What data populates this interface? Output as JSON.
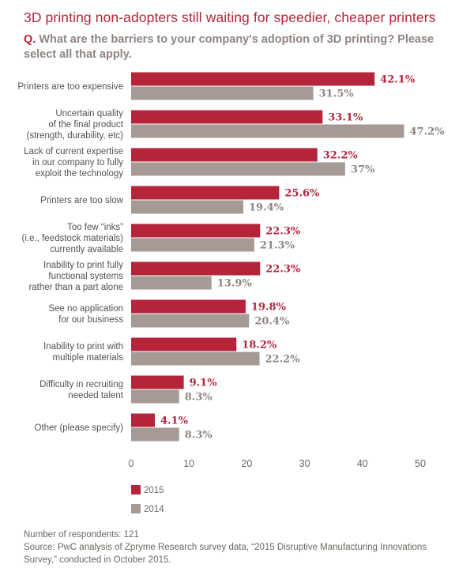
{
  "header": {
    "title": "3D printing non-adopters still waiting for speedier, cheaper printers",
    "question_label": "Q.",
    "question_text": "What are the barriers to your company's adoption of 3D printing? Please select all that apply."
  },
  "colors": {
    "series_2015": "#b5243a",
    "series_2014": "#a59b94",
    "value_2015": "#b5243a",
    "value_2014": "#8f8580"
  },
  "chart_data": {
    "type": "bar",
    "orientation": "horizontal",
    "categories": [
      [
        "Printers are too expensive"
      ],
      [
        "Uncertain quality",
        "of the final product",
        "(strength, durability, etc)"
      ],
      [
        "Lack of current expertise",
        "in our company to fully",
        "exploit the technology"
      ],
      [
        "Printers are too slow"
      ],
      [
        "Too few “inks”",
        "(i.e., feedstock materials)",
        "currently available"
      ],
      [
        "Inability to print fully",
        "functional systems",
        "rather than a part alone"
      ],
      [
        "See no application",
        "for our business"
      ],
      [
        "Inability to print with",
        "multiple materials"
      ],
      [
        "Difficulty in recruiting",
        "needed talent"
      ],
      [
        "Other (please specify)"
      ]
    ],
    "series": [
      {
        "name": "2015",
        "values": [
          42.1,
          33.1,
          32.2,
          25.6,
          22.3,
          22.3,
          19.8,
          18.2,
          9.1,
          4.1
        ],
        "labels": [
          "42.1%",
          "33.1%",
          "32.2%",
          "25.6%",
          "22.3%",
          "22.3%",
          "19.8%",
          "18.2%",
          "9.1%",
          "4.1%"
        ]
      },
      {
        "name": "2014",
        "values": [
          31.5,
          47.2,
          37,
          19.4,
          21.3,
          13.9,
          20.4,
          22.2,
          8.3,
          8.3
        ],
        "labels": [
          "31.5%",
          "47.2%",
          "37%",
          "19.4%",
          "21.3%",
          "13.9%",
          "20.4%",
          "22.2%",
          "8.3%",
          "8.3%"
        ]
      }
    ],
    "xlim": [
      0,
      50
    ],
    "xticks": [
      "0",
      "10",
      "20",
      "30",
      "40",
      "50"
    ],
    "grid": false,
    "legend_position": "bottom-left"
  },
  "footer": {
    "respondents": "Number of respondents: 121",
    "source_line1": "Source: PwC analysis of Zpryme Research survey data, “2015 Disruptive Manufacturing Innovations",
    "source_line2": "Survey,” conducted in October 2015."
  }
}
